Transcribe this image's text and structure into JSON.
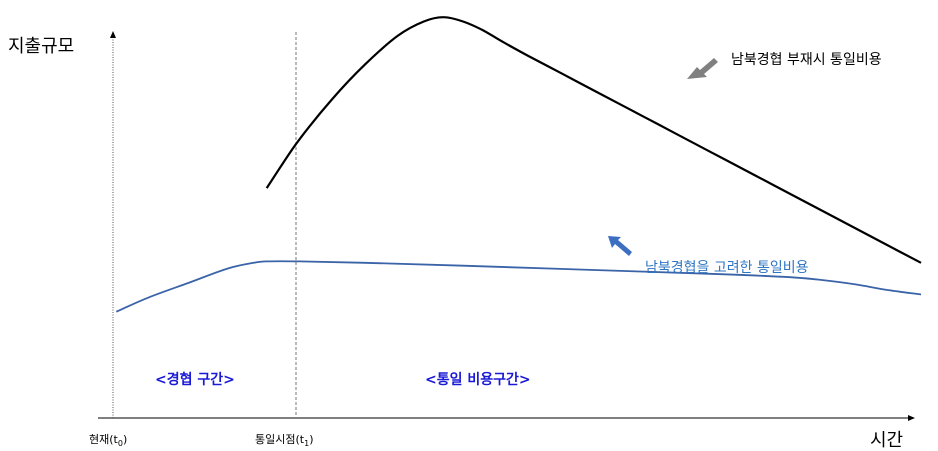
{
  "chart_data": {
    "type": "line",
    "ylabel": "지출규모",
    "xlabel": "시간",
    "x_ticks": [
      {
        "label": "현재(t",
        "sub": "0",
        "close": ")"
      },
      {
        "label": "통일시점(t",
        "sub": "1",
        "close": ")"
      }
    ],
    "regions": {
      "cooperation": "<경협 구간>",
      "unification": "<통일 비용구간>"
    },
    "series": [
      {
        "name": "남북경협 부재시 통일비용",
        "color": "#000000",
        "arrow_color": "#808080",
        "x": [
          0.0,
          0.02,
          0.05,
          0.1,
          0.15,
          0.2,
          0.24,
          0.27,
          0.3,
          0.33,
          0.36,
          0.4,
          0.45,
          0.5,
          0.55,
          0.6,
          0.65,
          0.7,
          0.75,
          0.8,
          0.85,
          0.9,
          0.95,
          1.0
        ],
        "y": [
          0.7,
          0.77,
          0.87,
          1.01,
          1.13,
          1.23,
          1.28,
          1.295,
          1.28,
          1.25,
          1.21,
          1.16,
          1.1,
          1.04,
          0.98,
          0.92,
          0.86,
          0.8,
          0.74,
          0.68,
          0.62,
          0.56,
          0.5,
          0.44
        ]
      },
      {
        "name": "남북경협을 고려한 통일비용",
        "color": "#3a63a8",
        "arrow_color": "#3c6ec2",
        "x": [
          -0.23,
          -0.18,
          -0.12,
          -0.06,
          -0.02,
          0.0,
          0.05,
          0.15,
          0.3,
          0.5,
          0.7,
          0.8,
          0.85,
          0.9,
          0.95,
          1.0
        ],
        "y": [
          0.27,
          0.32,
          0.37,
          0.42,
          0.44,
          0.445,
          0.445,
          0.44,
          0.43,
          0.415,
          0.4,
          0.39,
          0.38,
          0.365,
          0.345,
          0.33
        ]
      }
    ],
    "xlim": [
      -0.235,
      1.0
    ],
    "ylim": [
      -0.1,
      1.32
    ],
    "region_color": "#1a1ad6"
  }
}
